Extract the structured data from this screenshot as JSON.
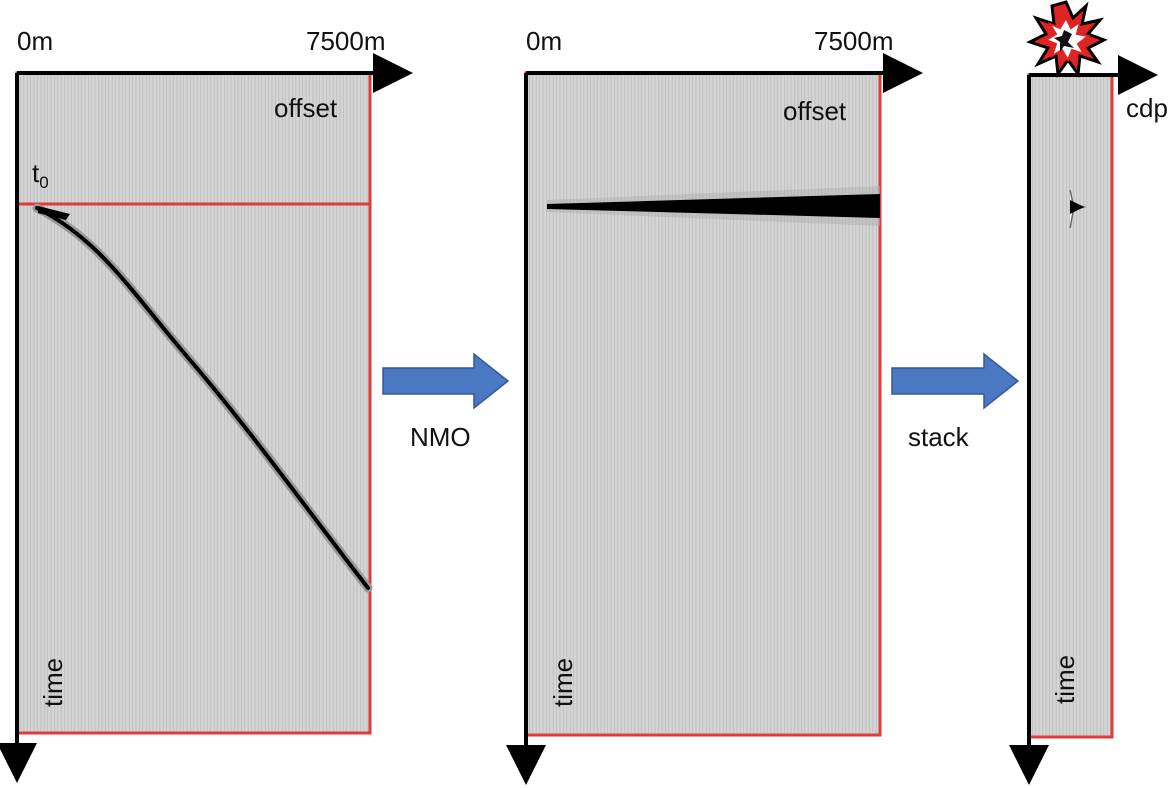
{
  "panels": [
    {
      "id": "gather",
      "offset_start_label": "0m",
      "offset_end_label": "7500m",
      "horizontal_axis_label": "offset",
      "vertical_axis_label": "time",
      "t0_label": "t",
      "t0_subscript": "0"
    },
    {
      "id": "nmo-corrected",
      "offset_start_label": "0m",
      "offset_end_label": "7500m",
      "horizontal_axis_label": "offset",
      "vertical_axis_label": "time"
    },
    {
      "id": "stacked",
      "horizontal_axis_label": "cdp",
      "vertical_axis_label": "time",
      "icon": "explosion-icon"
    }
  ],
  "steps": [
    {
      "label": "NMO",
      "arrow_color": "#4a78c2"
    },
    {
      "label": "stack",
      "arrow_color": "#4a78c2"
    }
  ],
  "colors": {
    "frame": "#e03a3a",
    "axis": "#000000",
    "panel_background": "#d4d4d4",
    "trace_line": "#b9b9b9",
    "event": "#000000",
    "explosion_fill": "#e02424"
  }
}
